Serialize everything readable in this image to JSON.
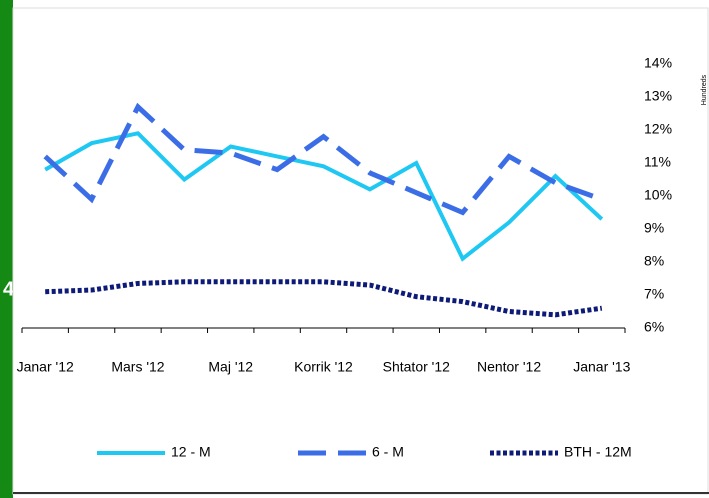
{
  "side_label": "4",
  "chart_data": {
    "type": "line",
    "units_label": "Hundreds",
    "categories": [
      "Janar '12",
      null,
      "Mars '12",
      null,
      "Maj '12",
      null,
      "Korrik '12",
      null,
      "Shtator '12",
      null,
      "Nentor '12",
      null,
      "Janar '13"
    ],
    "series": [
      {
        "name": "12 - M",
        "color": "#1ec8f2",
        "dash": "solid",
        "values": [
          10.8,
          11.6,
          11.9,
          10.5,
          11.5,
          11.2,
          10.9,
          10.2,
          11.0,
          8.1,
          9.2,
          10.6,
          9.3
        ]
      },
      {
        "name": "6 - M",
        "color": "#3b6ee6",
        "dash": "dashed",
        "values": [
          11.2,
          9.9,
          12.7,
          11.4,
          11.3,
          10.8,
          11.8,
          10.7,
          10.1,
          9.5,
          11.2,
          10.4,
          9.9
        ]
      },
      {
        "name": "BTH - 12M",
        "color": "#0d1a78",
        "dash": "dotted",
        "values": [
          7.1,
          7.15,
          7.35,
          7.4,
          7.4,
          7.4,
          7.4,
          7.3,
          6.95,
          6.8,
          6.5,
          6.4,
          6.6
        ]
      }
    ],
    "ylim": [
      6,
      14
    ],
    "yticks": [
      {
        "value": 6,
        "label": "6%"
      },
      {
        "value": 7,
        "label": "7%"
      },
      {
        "value": 8,
        "label": "8%"
      },
      {
        "value": 9,
        "label": "9%"
      },
      {
        "value": 10,
        "label": "10%"
      },
      {
        "value": 11,
        "label": "11%"
      },
      {
        "value": 12,
        "label": "12%"
      },
      {
        "value": 13,
        "label": "13%"
      },
      {
        "value": 14,
        "label": "14%"
      }
    ],
    "grid": false,
    "legend": "bottom"
  }
}
